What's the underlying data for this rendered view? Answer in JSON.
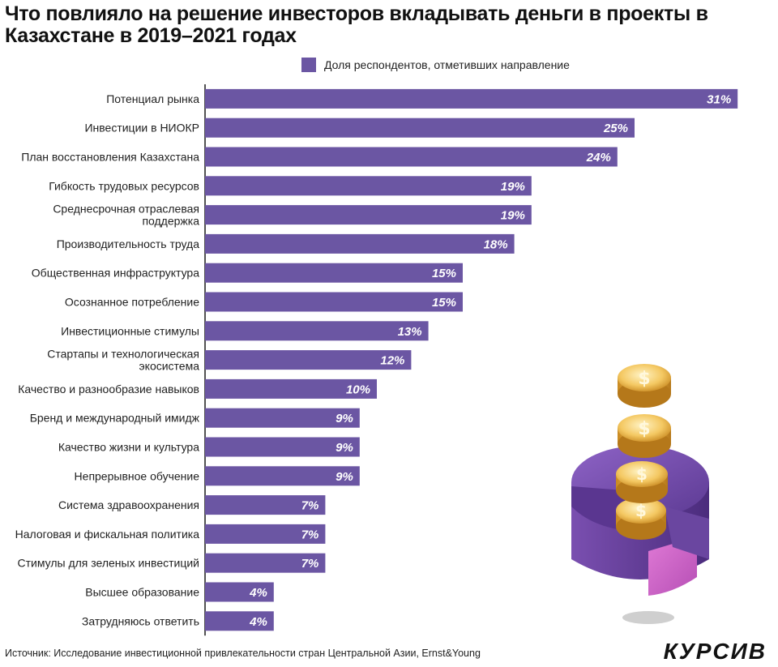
{
  "title": "Что повлияло на решение инвесторов вкладывать деньги в проекты в Казахстане в 2019–2021 годах",
  "legend": {
    "label": "Доля респондентов, отметивших направление"
  },
  "source": "Источник: Исследование инвестиционной привлекательности стран Центральной Азии, Ernst&Young",
  "brand": "КУРСИВ",
  "colors": {
    "bar": "#6b56a3",
    "axis": "#1a1a1a",
    "value_text": "#ffffff"
  },
  "illustration": {
    "icon": "coins-and-pie-chart-icon"
  },
  "chart_data": {
    "type": "bar",
    "orientation": "horizontal",
    "series": [
      {
        "name": "Доля респондентов, отметивших направление"
      }
    ],
    "categories": [
      [
        "Потенциал рынка"
      ],
      [
        "Инвестиции в НИОКР"
      ],
      [
        "План восстановления Казахстана"
      ],
      [
        "Гибкость трудовых ресурсов"
      ],
      [
        "Среднесрочная отраслевая",
        "поддержка"
      ],
      [
        "Производительность труда"
      ],
      [
        "Общественная инфраструктура"
      ],
      [
        "Осознанное потребление"
      ],
      [
        "Инвестиционные стимулы"
      ],
      [
        "Стартапы и технологическая",
        "экосистема"
      ],
      [
        "Качество и разнообразие навыков"
      ],
      [
        "Бренд и международный имидж"
      ],
      [
        "Качество жизни и культура"
      ],
      [
        "Непрерывное обучение"
      ],
      [
        "Система здравоохранения"
      ],
      [
        "Налоговая и фискальная политика"
      ],
      [
        "Стимулы для зеленых инвестиций"
      ],
      [
        "Высшее образование"
      ],
      [
        "Затрудняюсь ответить"
      ]
    ],
    "values": [
      31,
      25,
      24,
      19,
      19,
      18,
      15,
      15,
      13,
      12,
      10,
      9,
      9,
      9,
      7,
      7,
      7,
      4,
      4
    ],
    "value_labels": [
      "31%",
      "25%",
      "24%",
      "19%",
      "19%",
      "18%",
      "15%",
      "15%",
      "13%",
      "12%",
      "10%",
      "9%",
      "9%",
      "9%",
      "7%",
      "7%",
      "7%",
      "4%",
      "4%"
    ],
    "unit": "%",
    "xlim": [
      0,
      31
    ],
    "grid": false,
    "legend_position": "top"
  }
}
